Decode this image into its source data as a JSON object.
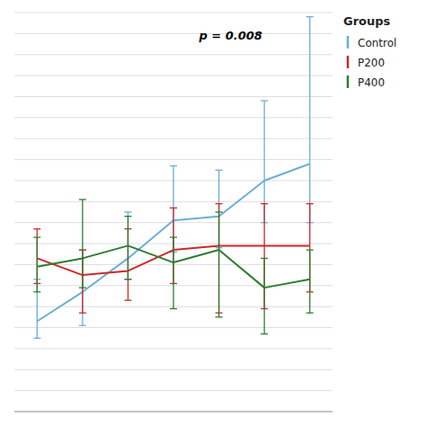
{
  "chart_data": {
    "type": "line",
    "x": [
      1,
      2,
      3,
      4,
      5,
      6,
      7
    ],
    "series": [
      {
        "name": "Control",
        "color": "#6baed6",
        "values": [
          0.08,
          0.22,
          0.38,
          0.56,
          0.58,
          0.75,
          0.83
        ],
        "yerr_lo": [
          0.08,
          0.16,
          0.1,
          0.15,
          0.15,
          0.2,
          0.28
        ],
        "yerr_hi": [
          0.2,
          0.2,
          0.22,
          0.26,
          0.22,
          0.38,
          0.7
        ]
      },
      {
        "name": "P200",
        "color": "#cc2929",
        "values": [
          0.38,
          0.3,
          0.32,
          0.42,
          0.44,
          0.44,
          0.44
        ],
        "yerr_lo": [
          0.12,
          0.18,
          0.14,
          0.16,
          0.32,
          0.3,
          0.22
        ],
        "yerr_hi": [
          0.14,
          0.12,
          0.2,
          0.2,
          0.2,
          0.2,
          0.2
        ]
      },
      {
        "name": "P400",
        "color": "#2e7d32",
        "values": [
          0.34,
          0.38,
          0.44,
          0.36,
          0.42,
          0.24,
          0.28
        ],
        "yerr_lo": [
          0.12,
          0.14,
          0.16,
          0.22,
          0.32,
          0.22,
          0.16
        ],
        "yerr_hi": [
          0.14,
          0.28,
          0.14,
          0.12,
          0.18,
          0.14,
          0.14
        ]
      }
    ],
    "annotation": "p = 0.008",
    "legend_title": "Groups",
    "legend": "right",
    "xlim": [
      0.5,
      7.5
    ],
    "xticks": [],
    "ylim": [
      -0.35,
      1.55
    ],
    "yticks": [
      -0.35,
      -0.25,
      -0.15,
      -0.05,
      0.05,
      0.15,
      0.25,
      0.35,
      0.45,
      0.55,
      0.65,
      0.75,
      0.85,
      0.95,
      1.05,
      1.15,
      1.25,
      1.35,
      1.45,
      1.55
    ],
    "grid": true,
    "tick_labels": false
  }
}
